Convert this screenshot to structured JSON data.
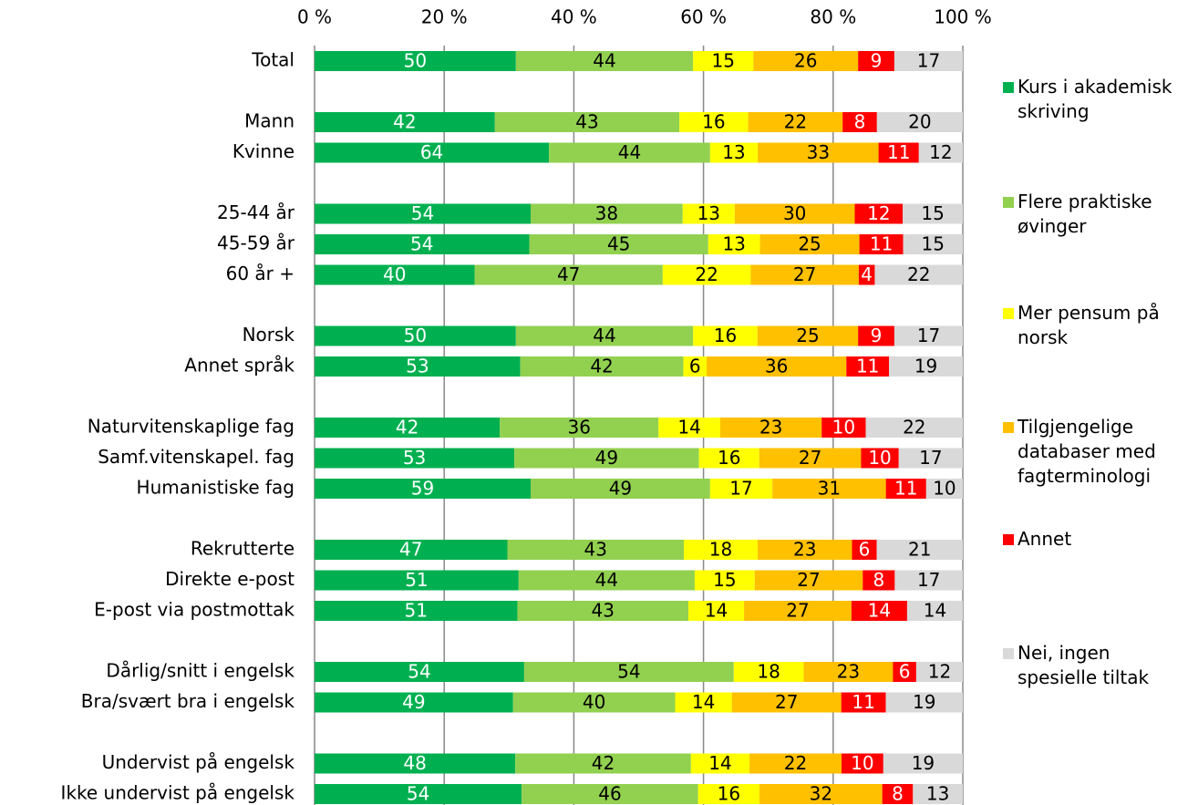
{
  "chart_data": {
    "type": "bar",
    "orientation": "horizontal",
    "stacked": "percent",
    "categories": [
      "Total",
      null,
      "Mann",
      "Kvinne",
      null,
      "25-44 år",
      "45-59 år",
      "60 år +",
      null,
      "Norsk",
      "Annet språk",
      null,
      "Naturvitenskaplige fag",
      "Samf.vitenskapel. fag",
      "Humanistiske fag",
      null,
      "Rekrutterte",
      "Direkte e-post",
      "E-post via postmottak",
      null,
      "Dårlig/snitt i engelsk",
      "Bra/svært bra i engelsk",
      null,
      "Undervist på engelsk",
      "Ikke undervist på engelsk"
    ],
    "series": [
      {
        "name": "Kurs i akademisk skriving",
        "color": "#00b050",
        "label_color": "#ffffff",
        "values": [
          50,
          null,
          42,
          64,
          null,
          54,
          54,
          40,
          null,
          50,
          53,
          null,
          42,
          53,
          59,
          null,
          47,
          51,
          51,
          null,
          54,
          49,
          null,
          48,
          54
        ]
      },
      {
        "name": "Flere praktiske øvinger",
        "color": "#92d050",
        "label_color": "#000000",
        "values": [
          44,
          null,
          43,
          44,
          null,
          38,
          45,
          47,
          null,
          44,
          42,
          null,
          36,
          49,
          49,
          null,
          43,
          44,
          43,
          null,
          54,
          40,
          null,
          42,
          46
        ]
      },
      {
        "name": "Mer pensum på norsk",
        "color": "#ffff00",
        "label_color": "#000000",
        "values": [
          15,
          null,
          16,
          13,
          null,
          13,
          13,
          22,
          null,
          16,
          6,
          null,
          14,
          16,
          17,
          null,
          18,
          15,
          14,
          null,
          18,
          14,
          null,
          14,
          16
        ]
      },
      {
        "name": "Tilgjengelige databaser med fagterminologi",
        "color": "#ffc000",
        "label_color": "#000000",
        "values": [
          26,
          null,
          22,
          33,
          null,
          30,
          25,
          27,
          null,
          25,
          36,
          null,
          23,
          27,
          31,
          null,
          23,
          27,
          27,
          null,
          23,
          27,
          null,
          22,
          32
        ]
      },
      {
        "name": "Annet",
        "color": "#ff0000",
        "label_color": "#ffffff",
        "values": [
          9,
          null,
          8,
          11,
          null,
          12,
          11,
          4,
          null,
          9,
          11,
          null,
          10,
          10,
          11,
          null,
          6,
          8,
          14,
          null,
          6,
          11,
          null,
          10,
          8
        ]
      },
      {
        "name": "Nei, ingen spesielle tiltak",
        "color": "#d9d9d9",
        "label_color": "#000000",
        "values": [
          17,
          null,
          20,
          12,
          null,
          15,
          15,
          22,
          null,
          17,
          19,
          null,
          22,
          17,
          10,
          null,
          21,
          17,
          14,
          null,
          12,
          19,
          null,
          19,
          13
        ]
      }
    ],
    "xlim": [
      0,
      100
    ],
    "xticks": [
      {
        "value": 0,
        "label": "0 %"
      },
      {
        "value": 20,
        "label": "20 %"
      },
      {
        "value": 40,
        "label": "40 %"
      },
      {
        "value": 60,
        "label": "60 %"
      },
      {
        "value": 80,
        "label": "80 %"
      },
      {
        "value": 100,
        "label": "100 %"
      }
    ],
    "grid": true,
    "legend": "right"
  }
}
